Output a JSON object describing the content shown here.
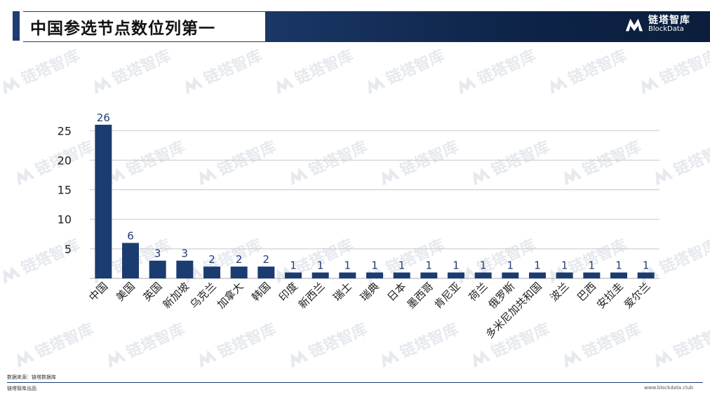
{
  "header": {
    "title": "中国参选节点数位列第一",
    "brand_cn": "链塔智库",
    "brand_en": "BlockData"
  },
  "watermark": {
    "text": "链塔智库",
    "color": "#e6e9ee"
  },
  "colors": {
    "bar": "#1a3c71",
    "header_band": "#0d2347",
    "accent": "#1f3c73",
    "grid": "#c8c8c8",
    "data_label": "#1f3c73"
  },
  "footer": {
    "source": "数据来源：链塔数据库",
    "publisher": "链塔智库出品",
    "website": "www.blockdata.club"
  },
  "chart_data": {
    "type": "bar",
    "title": "",
    "xlabel": "",
    "ylabel": "",
    "ylim": [
      0,
      28
    ],
    "yticks": [
      5,
      10,
      15,
      20,
      25
    ],
    "grid": true,
    "legend": "none",
    "categories": [
      "中国",
      "美国",
      "英国",
      "新加坡",
      "乌克兰",
      "加拿大",
      "韩国",
      "印度",
      "新西兰",
      "瑞士",
      "瑞典",
      "日本",
      "墨西哥",
      "肯尼亚",
      "荷兰",
      "俄罗斯",
      "多米尼加共和国",
      "波兰",
      "巴西",
      "安拉圭",
      "爱尔兰"
    ],
    "values": [
      26,
      6,
      3,
      3,
      2,
      2,
      2,
      1,
      1,
      1,
      1,
      1,
      1,
      1,
      1,
      1,
      1,
      1,
      1,
      1,
      1
    ]
  }
}
